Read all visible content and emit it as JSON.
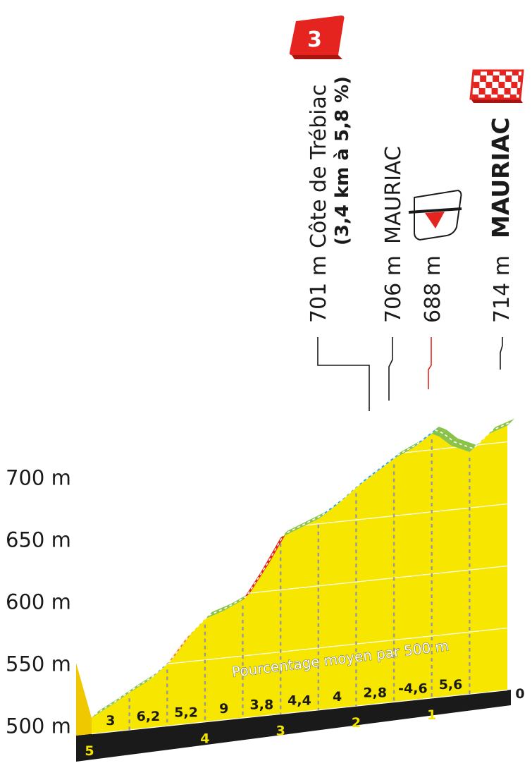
{
  "chart_data": {
    "type": "area",
    "title": "",
    "caption": "Pourcentage moyen par 500 m",
    "y_axis": {
      "unit": "m",
      "ticks": [
        "500 m",
        "550 m",
        "600 m",
        "650 m",
        "700 m"
      ],
      "range": [
        500,
        720
      ]
    },
    "x_axis": {
      "unit": "km",
      "reversed": true,
      "range": [
        5.5,
        0
      ],
      "km_markers": [
        "5",
        "4",
        "3",
        "2",
        "1",
        "0"
      ]
    },
    "profile": [
      {
        "km": 5.5,
        "alt": 513
      },
      {
        "km": 5.25,
        "alt": 521
      },
      {
        "km": 5.0,
        "alt": 530
      },
      {
        "km": 4.75,
        "alt": 538
      },
      {
        "km": 4.5,
        "alt": 550
      },
      {
        "km": 4.25,
        "alt": 569
      },
      {
        "km": 4.0,
        "alt": 583
      },
      {
        "km": 3.75,
        "alt": 588
      },
      {
        "km": 3.5,
        "alt": 595
      },
      {
        "km": 3.25,
        "alt": 617
      },
      {
        "km": 3.0,
        "alt": 642
      },
      {
        "km": 2.75,
        "alt": 648
      },
      {
        "km": 2.5,
        "alt": 654
      },
      {
        "km": 2.25,
        "alt": 664
      },
      {
        "km": 2.0,
        "alt": 676
      },
      {
        "km": 1.75,
        "alt": 686
      },
      {
        "km": 1.5,
        "alt": 696
      },
      {
        "km": 1.25,
        "alt": 703
      },
      {
        "km": 1.0,
        "alt": 713
      },
      {
        "km": 0.9,
        "alt": 710
      },
      {
        "km": 0.75,
        "alt": 702
      },
      {
        "km": 0.5,
        "alt": 695
      },
      {
        "km": 0.4,
        "alt": 700
      },
      {
        "km": 0.25,
        "alt": 708
      },
      {
        "km": 0.0,
        "alt": 713
      }
    ],
    "segments": [
      {
        "label": "3"
      },
      {
        "label": "6,2"
      },
      {
        "label": "5,2"
      },
      {
        "label": "9"
      },
      {
        "label": "3,8"
      },
      {
        "label": "4,4"
      },
      {
        "label": "4"
      },
      {
        "label": "2,8"
      },
      {
        "label": "-4,6"
      },
      {
        "label": "5,6"
      }
    ],
    "gradient_colors": {
      "flat": "#8bc34a",
      "moderate": "#2ba3e0",
      "steep": "#f28c28",
      "very_steep": "#e52420"
    },
    "fill_color": "#f7e600",
    "climb_number": "3",
    "annotations": [
      {
        "alt": "701 m",
        "name": "Côte de Trébiac",
        "detail": "(3,4 km à 5,8 %)",
        "km": 1.5
      },
      {
        "alt": "706 m",
        "name": "MAURIAC",
        "detail": "",
        "km": 1.25
      },
      {
        "alt": "688 m",
        "name": "",
        "detail": "",
        "km": 1.0
      },
      {
        "alt": "714 m",
        "name": "MAURIAC",
        "detail": "",
        "km": 0.0
      }
    ]
  }
}
